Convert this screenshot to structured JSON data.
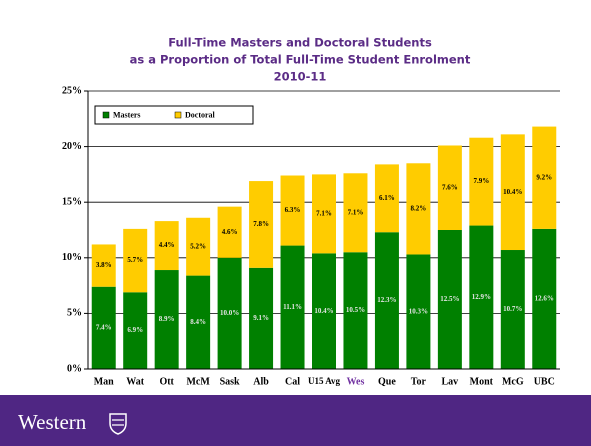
{
  "chart_data": {
    "type": "stacked_bar",
    "title": [
      "Full-Time Masters and Doctoral Students",
      "as a Proportion of Total Full-Time Student Enrolment",
      "2010-11"
    ],
    "categories": [
      "Man",
      "Wat",
      "Ott",
      "McM",
      "Sask",
      "Alb",
      "Cal",
      "U15 Avg",
      "Wes",
      "Que",
      "Tor",
      "Lav",
      "Mont",
      "McG",
      "UBC"
    ],
    "category_label_colors": [
      "#000000",
      "#000000",
      "#000000",
      "#000000",
      "#000000",
      "#000000",
      "#000000",
      "#000000",
      "#7030a0",
      "#000000",
      "#000000",
      "#000000",
      "#000000",
      "#000000",
      "#000000"
    ],
    "series": [
      {
        "name": "Masters",
        "color": "#008000",
        "values": [
          7.4,
          6.9,
          8.9,
          8.4,
          10.0,
          9.1,
          11.1,
          10.4,
          10.5,
          12.3,
          10.3,
          12.5,
          12.9,
          10.7,
          12.6
        ],
        "value_labels": [
          "7.4%",
          "6.9%",
          "8.9%",
          "8.4%",
          "10.0%",
          "9.1%",
          "11.1%",
          "10.4%",
          "10.5%",
          "12.3%",
          "10.3%",
          "12.5%",
          "12.9%",
          "10.7%",
          "12.6%"
        ]
      },
      {
        "name": "Doctoral",
        "color": "#ffcc00",
        "values": [
          3.8,
          5.7,
          4.4,
          5.2,
          4.6,
          7.8,
          6.3,
          7.1,
          7.1,
          6.1,
          8.2,
          7.6,
          7.9,
          10.4,
          9.2
        ],
        "value_labels": [
          "3.8%",
          "5.7%",
          "4.4%",
          "5.2%",
          "4.6%",
          "7.8%",
          "6.3%",
          "7.1%",
          "7.1%",
          "6.1%",
          "8.2%",
          "7.6%",
          "7.9%",
          "10.4%",
          "9.2%"
        ]
      }
    ],
    "ylim": [
      0,
      25
    ],
    "yticks": [
      {
        "value": 0,
        "label": "0%"
      },
      {
        "value": 5,
        "label": "5%"
      },
      {
        "value": 10,
        "label": "10%"
      },
      {
        "value": 15,
        "label": "15%"
      },
      {
        "value": 20,
        "label": "20%"
      },
      {
        "value": 25,
        "label": "25%"
      }
    ],
    "grid": true,
    "legend": "top-left"
  },
  "footer": {
    "logo_text": "Western"
  }
}
